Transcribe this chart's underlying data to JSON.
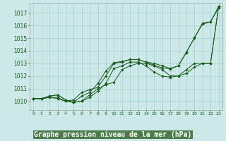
{
  "background_color": "#cce8e8",
  "plot_bg_color": "#cce8e8",
  "xlabel_bg_color": "#4a7c4a",
  "grid_color": "#aad4d4",
  "line_color": "#1a5c1a",
  "marker_color": "#1a5c1a",
  "xlabel": "Graphe pression niveau de la mer (hPa)",
  "xlabel_fontsize": 7.0,
  "xlim": [
    -0.5,
    23.5
  ],
  "ylim": [
    1009.3,
    1017.8
  ],
  "yticks": [
    1010,
    1011,
    1012,
    1013,
    1014,
    1015,
    1016,
    1017
  ],
  "xtick_labels": [
    "0",
    "1",
    "2",
    "3",
    "4",
    "5",
    "6",
    "7",
    "8",
    "9",
    "10",
    "11",
    "12",
    "13",
    "14",
    "15",
    "16",
    "17",
    "18",
    "19",
    "20",
    "21",
    "22",
    "23"
  ],
  "xticks": [
    0,
    1,
    2,
    3,
    4,
    5,
    6,
    7,
    8,
    9,
    10,
    11,
    12,
    13,
    14,
    15,
    16,
    17,
    18,
    19,
    20,
    21,
    22,
    23
  ],
  "series": [
    {
      "x": [
        0,
        1,
        2,
        3,
        4,
        5,
        6,
        7,
        8,
        9,
        10,
        11,
        12,
        13,
        14,
        15,
        16,
        17,
        18,
        19,
        20,
        21,
        22,
        23
      ],
      "y": [
        1010.2,
        1010.2,
        1010.3,
        1010.2,
        1010.0,
        1009.9,
        1010.0,
        1010.5,
        1011.0,
        1011.3,
        1011.5,
        1012.5,
        1012.8,
        1013.0,
        1013.0,
        1012.8,
        1012.5,
        1012.0,
        1012.0,
        1012.2,
        1012.7,
        1013.0,
        1013.0,
        1017.5
      ]
    },
    {
      "x": [
        0,
        1,
        2,
        3,
        4,
        5,
        6,
        7,
        8,
        9,
        10,
        11,
        12,
        13,
        14,
        15,
        16,
        17,
        18,
        19,
        20,
        21,
        22,
        23
      ],
      "y": [
        1010.2,
        1010.2,
        1010.4,
        1010.5,
        1010.1,
        1009.9,
        1010.0,
        1010.3,
        1010.8,
        1011.4,
        1012.6,
        1012.8,
        1013.1,
        1013.1,
        1012.8,
        1012.3,
        1012.0,
        1011.9,
        1012.0,
        1012.5,
        1013.0,
        1013.0,
        1013.0,
        1017.5
      ]
    },
    {
      "x": [
        0,
        1,
        2,
        3,
        4,
        5,
        6,
        7,
        8,
        9,
        10,
        11,
        12,
        13,
        14,
        15,
        16,
        17,
        18,
        19,
        20,
        21,
        22,
        23
      ],
      "y": [
        1010.2,
        1010.2,
        1010.4,
        1010.5,
        1010.1,
        1009.9,
        1010.4,
        1010.7,
        1011.4,
        1012.4,
        1013.05,
        1013.15,
        1013.3,
        1013.3,
        1013.1,
        1012.85,
        1012.65,
        1012.55,
        1012.8,
        1013.85,
        1015.05,
        1016.1,
        1016.3,
        1017.5
      ]
    },
    {
      "x": [
        0,
        1,
        2,
        3,
        4,
        5,
        6,
        7,
        8,
        9,
        10,
        11,
        12,
        13,
        14,
        15,
        16,
        17,
        18,
        19,
        20,
        21,
        22,
        23
      ],
      "y": [
        1010.2,
        1010.2,
        1010.3,
        1010.3,
        1010.0,
        1010.1,
        1010.7,
        1010.9,
        1011.1,
        1012.0,
        1013.0,
        1013.1,
        1013.3,
        1013.3,
        1013.1,
        1013.0,
        1012.8,
        1012.6,
        1012.8,
        1013.9,
        1015.0,
        1016.2,
        1016.3,
        1017.4
      ]
    }
  ]
}
